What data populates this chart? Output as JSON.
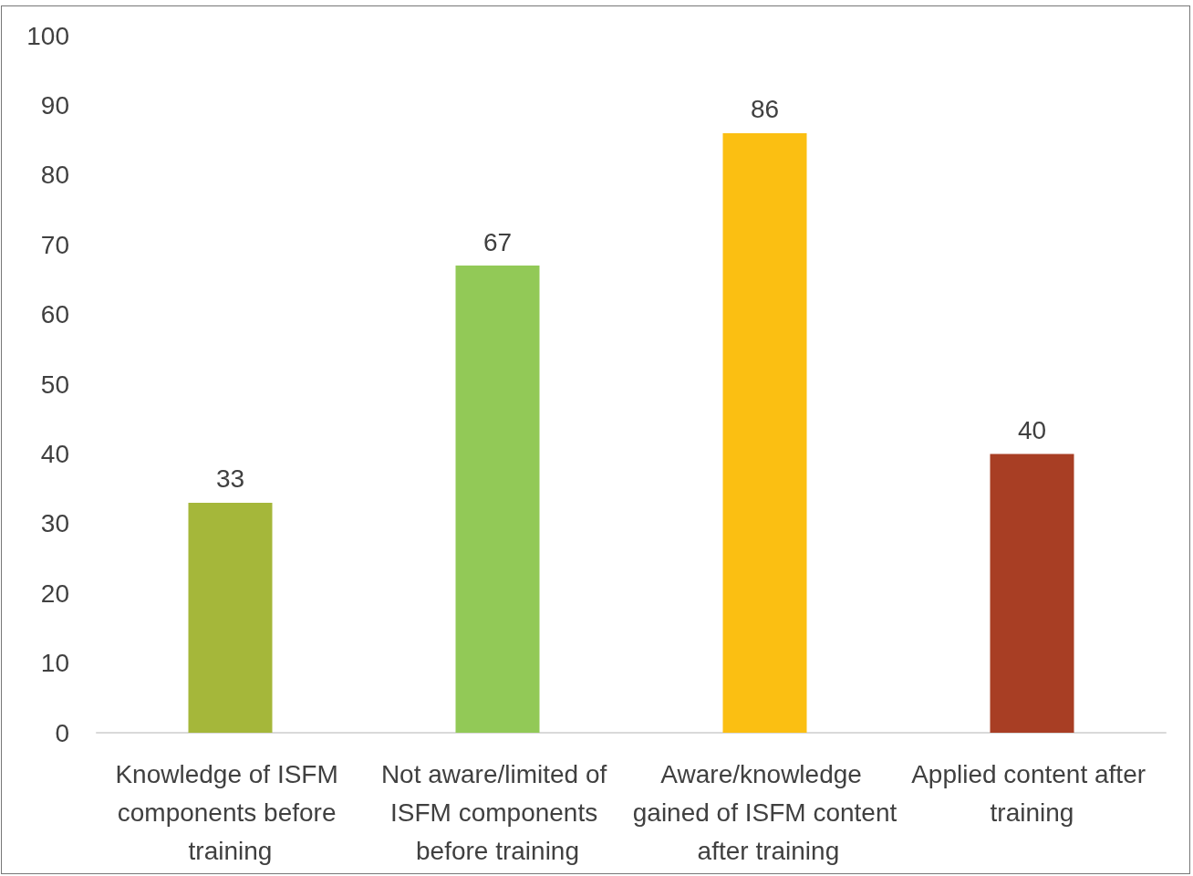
{
  "chart_data": {
    "type": "bar",
    "categories": [
      "Knowledge of ISFM components before training",
      "Not aware/limited of ISFM components before training",
      "Aware/knowledge gained of ISFM content after training",
      "Applied content after training"
    ],
    "values": [
      33,
      67,
      86,
      40
    ],
    "colors": [
      "#a5b73a",
      "#92c957",
      "#fbbf12",
      "#a83e24"
    ],
    "ylim": [
      0,
      100
    ],
    "yticks": [
      0,
      10,
      20,
      30,
      40,
      50,
      60,
      70,
      80,
      90,
      100
    ],
    "grid": false,
    "data_labels": true
  }
}
